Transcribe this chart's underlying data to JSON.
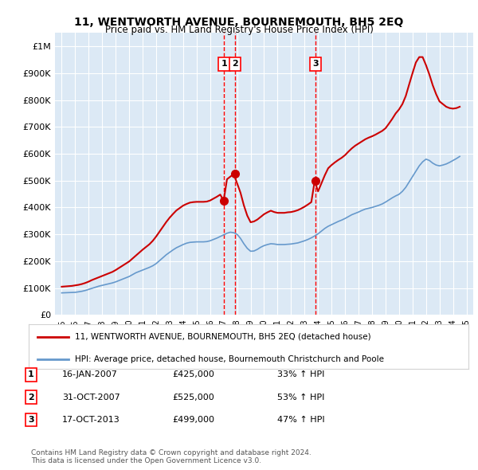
{
  "title": "11, WENTWORTH AVENUE, BOURNEMOUTH, BH5 2EQ",
  "subtitle": "Price paid vs. HM Land Registry's House Price Index (HPI)",
  "bg_color": "#dce9f5",
  "plot_bg_color": "#dce9f5",
  "red_line_color": "#cc0000",
  "blue_line_color": "#6699cc",
  "legend1": "11, WENTWORTH AVENUE, BOURNEMOUTH, BH5 2EQ (detached house)",
  "legend2": "HPI: Average price, detached house, Bournemouth Christchurch and Poole",
  "footer": "Contains HM Land Registry data © Crown copyright and database right 2024.\nThis data is licensed under the Open Government Licence v3.0.",
  "ylim": [
    0,
    1050000
  ],
  "yticks": [
    0,
    100000,
    200000,
    300000,
    400000,
    500000,
    600000,
    700000,
    800000,
    900000,
    1000000
  ],
  "ytick_labels": [
    "£0",
    "£100K",
    "£200K",
    "£300K",
    "£400K",
    "£500K",
    "£600K",
    "£700K",
    "£800K",
    "£900K",
    "£1M"
  ],
  "xtick_years": [
    "1995",
    "1996",
    "1997",
    "1998",
    "1999",
    "2000",
    "2001",
    "2002",
    "2003",
    "2004",
    "2005",
    "2006",
    "2007",
    "2008",
    "2009",
    "2010",
    "2011",
    "2012",
    "2013",
    "2014",
    "2015",
    "2016",
    "2017",
    "2018",
    "2019",
    "2020",
    "2021",
    "2022",
    "2023",
    "2024",
    "2025"
  ],
  "sales": [
    {
      "label": "1",
      "date": 2007.04,
      "price": 425000,
      "vline_x": 2007.04
    },
    {
      "label": "2",
      "date": 2007.83,
      "price": 525000,
      "vline_x": 2007.83
    },
    {
      "label": "3",
      "date": 2013.79,
      "price": 499000,
      "vline_x": 2013.79
    }
  ],
  "table_rows": [
    {
      "num": "1",
      "date": "16-JAN-2007",
      "price": "£425,000",
      "pct": "33% ↑ HPI"
    },
    {
      "num": "2",
      "date": "31-OCT-2007",
      "price": "£525,000",
      "pct": "53% ↑ HPI"
    },
    {
      "num": "3",
      "date": "17-OCT-2013",
      "price": "£499,000",
      "pct": "47% ↑ HPI"
    }
  ],
  "hpi_years": [
    1995.0,
    1995.25,
    1995.5,
    1995.75,
    1996.0,
    1996.25,
    1996.5,
    1996.75,
    1997.0,
    1997.25,
    1997.5,
    1997.75,
    1998.0,
    1998.25,
    1998.5,
    1998.75,
    1999.0,
    1999.25,
    1999.5,
    1999.75,
    2000.0,
    2000.25,
    2000.5,
    2000.75,
    2001.0,
    2001.25,
    2001.5,
    2001.75,
    2002.0,
    2002.25,
    2002.5,
    2002.75,
    2003.0,
    2003.25,
    2003.5,
    2003.75,
    2004.0,
    2004.25,
    2004.5,
    2004.75,
    2005.0,
    2005.25,
    2005.5,
    2005.75,
    2006.0,
    2006.25,
    2006.5,
    2006.75,
    2007.0,
    2007.25,
    2007.5,
    2007.75,
    2008.0,
    2008.25,
    2008.5,
    2008.75,
    2009.0,
    2009.25,
    2009.5,
    2009.75,
    2010.0,
    2010.25,
    2010.5,
    2010.75,
    2011.0,
    2011.25,
    2011.5,
    2011.75,
    2012.0,
    2012.25,
    2012.5,
    2012.75,
    2013.0,
    2013.25,
    2013.5,
    2013.75,
    2014.0,
    2014.25,
    2014.5,
    2014.75,
    2015.0,
    2015.25,
    2015.5,
    2015.75,
    2016.0,
    2016.25,
    2016.5,
    2016.75,
    2017.0,
    2017.25,
    2017.5,
    2017.75,
    2018.0,
    2018.25,
    2018.5,
    2018.75,
    2019.0,
    2019.25,
    2019.5,
    2019.75,
    2020.0,
    2020.25,
    2020.5,
    2020.75,
    2021.0,
    2021.25,
    2021.5,
    2021.75,
    2022.0,
    2022.25,
    2022.5,
    2022.75,
    2023.0,
    2023.25,
    2023.5,
    2023.75,
    2024.0,
    2024.25,
    2024.5
  ],
  "hpi_values": [
    82000,
    82500,
    83000,
    83500,
    84000,
    86000,
    88000,
    91000,
    95000,
    99000,
    103000,
    107000,
    110000,
    113000,
    116000,
    119000,
    123000,
    128000,
    133000,
    138000,
    143000,
    150000,
    157000,
    162000,
    167000,
    172000,
    177000,
    183000,
    191000,
    202000,
    213000,
    224000,
    233000,
    242000,
    250000,
    256000,
    262000,
    267000,
    270000,
    271000,
    272000,
    272000,
    272000,
    273000,
    276000,
    281000,
    286000,
    292000,
    298000,
    304000,
    308000,
    306000,
    300000,
    285000,
    265000,
    248000,
    237000,
    238000,
    244000,
    252000,
    258000,
    262000,
    265000,
    264000,
    262000,
    262000,
    262000,
    263000,
    264000,
    266000,
    268000,
    272000,
    276000,
    281000,
    287000,
    294000,
    302000,
    312000,
    322000,
    330000,
    336000,
    342000,
    348000,
    353000,
    359000,
    366000,
    373000,
    378000,
    383000,
    389000,
    394000,
    397000,
    400000,
    404000,
    408000,
    413000,
    420000,
    428000,
    436000,
    443000,
    449000,
    460000,
    475000,
    495000,
    515000,
    535000,
    555000,
    570000,
    580000,
    575000,
    565000,
    558000,
    555000,
    558000,
    562000,
    568000,
    575000,
    582000,
    590000
  ],
  "red_years": [
    1995.0,
    1995.25,
    1995.5,
    1995.75,
    1996.0,
    1996.25,
    1996.5,
    1996.75,
    1997.0,
    1997.25,
    1997.5,
    1997.75,
    1998.0,
    1998.25,
    1998.5,
    1998.75,
    1999.0,
    1999.25,
    1999.5,
    1999.75,
    2000.0,
    2000.25,
    2000.5,
    2000.75,
    2001.0,
    2001.25,
    2001.5,
    2001.75,
    2002.0,
    2002.25,
    2002.5,
    2002.75,
    2003.0,
    2003.25,
    2003.5,
    2003.75,
    2004.0,
    2004.25,
    2004.5,
    2004.75,
    2005.0,
    2005.25,
    2005.5,
    2005.75,
    2006.0,
    2006.25,
    2006.5,
    2006.75,
    2007.0,
    2007.25,
    2007.5,
    2007.75,
    2008.0,
    2008.25,
    2008.5,
    2008.75,
    2009.0,
    2009.25,
    2009.5,
    2009.75,
    2010.0,
    2010.25,
    2010.5,
    2010.75,
    2011.0,
    2011.25,
    2011.5,
    2011.75,
    2012.0,
    2012.25,
    2012.5,
    2012.75,
    2013.0,
    2013.25,
    2013.5,
    2013.75,
    2014.0,
    2014.25,
    2014.5,
    2014.75,
    2015.0,
    2015.25,
    2015.5,
    2015.75,
    2016.0,
    2016.25,
    2016.5,
    2016.75,
    2017.0,
    2017.25,
    2017.5,
    2017.75,
    2018.0,
    2018.25,
    2018.5,
    2018.75,
    2019.0,
    2019.25,
    2019.5,
    2019.75,
    2020.0,
    2020.25,
    2020.5,
    2020.75,
    2021.0,
    2021.25,
    2021.5,
    2021.75,
    2022.0,
    2022.25,
    2022.5,
    2022.75,
    2023.0,
    2023.25,
    2023.5,
    2023.75,
    2024.0,
    2024.25,
    2024.5
  ],
  "red_values": [
    105000,
    106000,
    107000,
    108000,
    110000,
    112000,
    115000,
    119000,
    124000,
    130000,
    135000,
    140000,
    145000,
    150000,
    155000,
    160000,
    167000,
    175000,
    183000,
    191000,
    199000,
    210000,
    221000,
    232000,
    243000,
    253000,
    263000,
    276000,
    292000,
    310000,
    328000,
    346000,
    362000,
    376000,
    389000,
    398000,
    407000,
    413000,
    418000,
    420000,
    421000,
    421000,
    421000,
    422000,
    426000,
    433000,
    440000,
    448000,
    425000,
    505000,
    515000,
    525000,
    490000,
    455000,
    408000,
    370000,
    345000,
    348000,
    355000,
    365000,
    375000,
    382000,
    388000,
    383000,
    380000,
    380000,
    380000,
    382000,
    383000,
    386000,
    390000,
    396000,
    403000,
    411000,
    420000,
    499000,
    460000,
    490000,
    520000,
    546000,
    558000,
    568000,
    577000,
    585000,
    595000,
    608000,
    620000,
    630000,
    638000,
    646000,
    654000,
    660000,
    665000,
    671000,
    678000,
    685000,
    695000,
    712000,
    730000,
    750000,
    765000,
    785000,
    815000,
    858000,
    900000,
    940000,
    960000,
    960000,
    930000,
    895000,
    855000,
    822000,
    795000,
    785000,
    775000,
    770000,
    768000,
    770000,
    775000
  ]
}
